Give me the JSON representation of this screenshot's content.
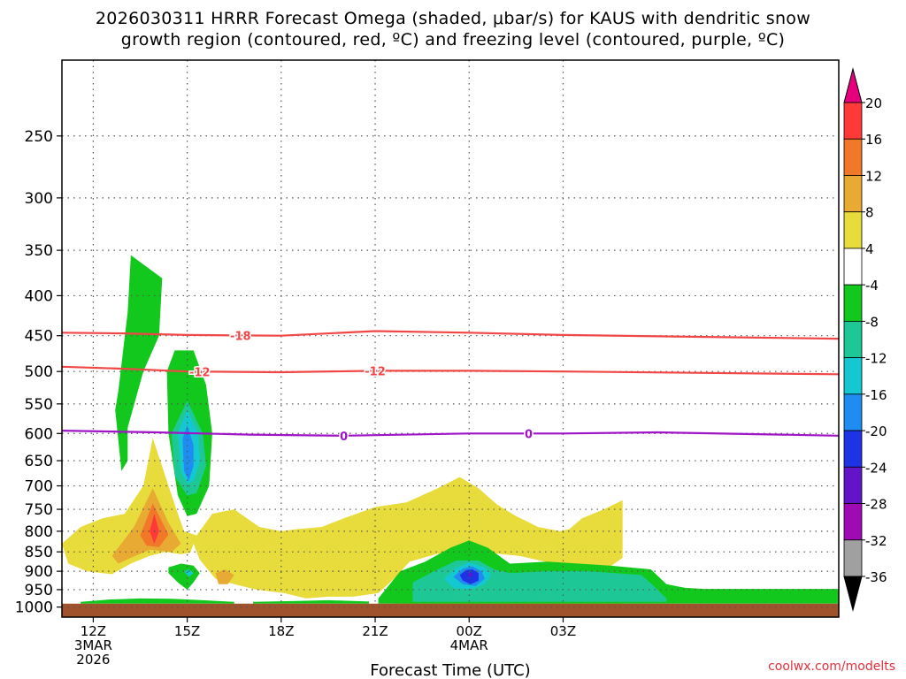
{
  "header": {
    "title_line1": "2026030311 HRRR Forecast Omega (shaded, μbar/s) for KAUS with dendritic snow",
    "title_line2": "growth region (contoured, red, ºC) and freezing level (contoured, purple, ºC)"
  },
  "credit": "coolwx.com/modelts",
  "chart_data": {
    "type": "heatmap",
    "xlabel": "Forecast Time (UTC)",
    "x_hour_range": [
      11,
      35.8
    ],
    "xticks": [
      {
        "hour": 12,
        "lines": [
          "12Z",
          "3MAR",
          "2026"
        ]
      },
      {
        "hour": 15,
        "lines": [
          "15Z"
        ]
      },
      {
        "hour": 18,
        "lines": [
          "18Z"
        ]
      },
      {
        "hour": 21,
        "lines": [
          "21Z"
        ]
      },
      {
        "hour": 24,
        "lines": [
          "00Z",
          "4MAR"
        ]
      },
      {
        "hour": 27,
        "lines": [
          "03Z"
        ]
      }
    ],
    "ylabel": "",
    "y_pressure_range_hPa": [
      200,
      1030
    ],
    "y_scale": "log, pressure decreasing upward",
    "yticks": [
      250,
      300,
      350,
      400,
      450,
      500,
      550,
      600,
      650,
      700,
      750,
      800,
      850,
      900,
      950,
      1000
    ],
    "grid": true,
    "ground_below_hPa": 990,
    "ground_color": "#a0522d",
    "colorbar": {
      "placement": "right",
      "levels": [
        20,
        16,
        12,
        8,
        4,
        -4,
        -8,
        -12,
        -16,
        -20,
        -24,
        -28,
        -32,
        -36
      ],
      "colors": [
        "#e6007e",
        "#ff3838",
        "#f07828",
        "#e8aa32",
        "#e8dc3c",
        "#ffffff",
        "#12c81c",
        "#1ec896",
        "#14c8d2",
        "#1e8cf0",
        "#1e32e6",
        "#6414c8",
        "#a00ab4",
        "#a0a0a0",
        "#000000"
      ],
      "extend": "both"
    },
    "contours": [
      {
        "name": "dendritic snow growth region",
        "color": "#f04646",
        "value": -18,
        "label": "-18",
        "points": [
          [
            11,
            446
          ],
          [
            13,
            447
          ],
          [
            15,
            449
          ],
          [
            18,
            450
          ],
          [
            21,
            444
          ],
          [
            24,
            446
          ],
          [
            27,
            449
          ],
          [
            35.8,
            454
          ]
        ],
        "label_hour": 16.7
      },
      {
        "name": "dendritic snow growth region",
        "color": "#f04646",
        "value": -12,
        "label": "-12",
        "points": [
          [
            11,
            493
          ],
          [
            13,
            496
          ],
          [
            15,
            500
          ],
          [
            18,
            501
          ],
          [
            21,
            499
          ],
          [
            24,
            499
          ],
          [
            27,
            500
          ],
          [
            35.8,
            504
          ]
        ],
        "label_hour": 15.4
      },
      {
        "name": "dendritic snow growth region",
        "color": "#f04646",
        "value": -12,
        "label": "-12",
        "points": [],
        "label_hour": 21.0
      },
      {
        "name": "freezing level",
        "color": "#a014c8",
        "value": 0,
        "label": "0",
        "points": [
          [
            11,
            595
          ],
          [
            14,
            598
          ],
          [
            17,
            602
          ],
          [
            20,
            604
          ],
          [
            24,
            600
          ],
          [
            27,
            600
          ],
          [
            30,
            598
          ],
          [
            35.8,
            604
          ]
        ],
        "label_hour": 20.0
      },
      {
        "name": "freezing level",
        "color": "#a014c8",
        "value": 0,
        "label": "0",
        "points": [],
        "label_hour": 25.9
      }
    ],
    "shaded_regions": [
      {
        "color": "#e8dc3c",
        "points": [
          [
            11,
            830
          ],
          [
            11.6,
            790
          ],
          [
            12.3,
            770
          ],
          [
            13,
            760
          ],
          [
            13.6,
            700
          ],
          [
            13.9,
            608
          ],
          [
            14.3,
            680
          ],
          [
            14.7,
            760
          ],
          [
            14.9,
            800
          ],
          [
            15.3,
            810
          ],
          [
            15.8,
            760
          ],
          [
            16.5,
            750
          ],
          [
            17.3,
            790
          ],
          [
            18,
            800
          ],
          [
            18.5,
            795
          ],
          [
            19.3,
            790
          ],
          [
            20,
            770
          ],
          [
            21,
            745
          ],
          [
            22,
            735
          ],
          [
            23,
            705
          ],
          [
            23.7,
            682
          ],
          [
            24.3,
            705
          ],
          [
            24.9,
            740
          ],
          [
            25.5,
            765
          ],
          [
            26.2,
            790
          ],
          [
            26.9,
            800
          ],
          [
            27.2,
            795
          ],
          [
            27.6,
            770
          ],
          [
            28.3,
            750
          ],
          [
            28.9,
            730
          ],
          [
            28.9,
            865
          ],
          [
            28.3,
            900
          ],
          [
            27.4,
            880
          ],
          [
            26.7,
            880
          ],
          [
            25.6,
            860
          ],
          [
            24.3,
            850
          ],
          [
            23,
            855
          ],
          [
            22.1,
            875
          ],
          [
            21.6,
            920
          ],
          [
            21.1,
            960
          ],
          [
            20.3,
            970
          ],
          [
            19.5,
            970
          ],
          [
            18.8,
            975
          ],
          [
            18.1,
            960
          ],
          [
            17.2,
            950
          ],
          [
            16.5,
            935
          ],
          [
            15.9,
            920
          ],
          [
            15.4,
            870
          ],
          [
            15.2,
            830
          ],
          [
            15.1,
            852
          ],
          [
            14.8,
            856
          ],
          [
            14.3,
            850
          ],
          [
            13.8,
            860
          ],
          [
            13.2,
            880
          ],
          [
            12.6,
            908
          ],
          [
            11.8,
            900
          ],
          [
            11.2,
            880
          ]
        ]
      },
      {
        "color": "#e8dc3c",
        "points": [
          [
            21.6,
            985
          ],
          [
            22.5,
            979
          ],
          [
            23.5,
            976
          ],
          [
            24.5,
            978
          ],
          [
            25.5,
            980
          ],
          [
            26.5,
            983
          ],
          [
            27.5,
            986
          ],
          [
            28.5,
            988
          ],
          [
            28.9,
            989
          ],
          [
            28.9,
            1000
          ],
          [
            21.6,
            1000
          ]
        ]
      },
      {
        "color": "#e8aa32",
        "points": [
          [
            12.6,
            860
          ],
          [
            13.3,
            790
          ],
          [
            13.9,
            705
          ],
          [
            14.4,
            780
          ],
          [
            14.8,
            830
          ],
          [
            14.5,
            850
          ],
          [
            13.8,
            845
          ],
          [
            13.2,
            865
          ],
          [
            12.8,
            880
          ]
        ]
      },
      {
        "color": "#e8aa32",
        "points": [
          [
            15.9,
            905
          ],
          [
            16.2,
            895
          ],
          [
            16.5,
            910
          ],
          [
            16.3,
            935
          ],
          [
            16.0,
            935
          ]
        ]
      },
      {
        "color": "#f07828",
        "points": [
          [
            13.5,
            810
          ],
          [
            13.9,
            737
          ],
          [
            14.4,
            808
          ],
          [
            14.1,
            838
          ],
          [
            13.7,
            835
          ]
        ]
      },
      {
        "color": "#ff3838",
        "points": [
          [
            13.8,
            800
          ],
          [
            13.95,
            760
          ],
          [
            14.1,
            800
          ],
          [
            13.95,
            830
          ]
        ]
      },
      {
        "color": "#12c81c",
        "points": [
          [
            12.8,
            530
          ],
          [
            13.1,
            420
          ],
          [
            13.2,
            355
          ],
          [
            14.2,
            380
          ],
          [
            14.1,
            450
          ],
          [
            13.6,
            500
          ],
          [
            13.1,
            590
          ],
          [
            13.1,
            650
          ],
          [
            12.9,
            670
          ],
          [
            12.7,
            560
          ]
        ]
      },
      {
        "color": "#12c81c",
        "points": [
          [
            14.35,
            500
          ],
          [
            14.6,
            470
          ],
          [
            15.2,
            470
          ],
          [
            15.6,
            520
          ],
          [
            15.8,
            600
          ],
          [
            15.7,
            700
          ],
          [
            15.3,
            760
          ],
          [
            15,
            765
          ],
          [
            14.7,
            720
          ],
          [
            14.4,
            600
          ]
        ]
      },
      {
        "color": "#12c81c",
        "points": [
          [
            14.4,
            890
          ],
          [
            14.8,
            880
          ],
          [
            15.2,
            885
          ],
          [
            15.4,
            905
          ],
          [
            15.2,
            930
          ],
          [
            15.0,
            950
          ],
          [
            14.7,
            930
          ],
          [
            14.4,
            905
          ]
        ]
      },
      {
        "color": "#12c81c",
        "points": [
          [
            11.6,
            985
          ],
          [
            12.5,
            978
          ],
          [
            13.5,
            975
          ],
          [
            14.5,
            976
          ],
          [
            15.5,
            980
          ],
          [
            16.5,
            985
          ],
          [
            16.5,
            990
          ],
          [
            11.6,
            990
          ]
        ]
      },
      {
        "color": "#12c81c",
        "points": [
          [
            17.1,
            985
          ],
          [
            18.5,
            982
          ],
          [
            19.5,
            980
          ],
          [
            20.3,
            982
          ],
          [
            20.8,
            984
          ],
          [
            20.8,
            990
          ],
          [
            17.1,
            990
          ]
        ]
      },
      {
        "color": "#12c81c",
        "points": [
          [
            21.1,
            975
          ],
          [
            21.8,
            900
          ],
          [
            22.6,
            875
          ],
          [
            23.4,
            840
          ],
          [
            24.0,
            822
          ],
          [
            24.6,
            840
          ],
          [
            25.3,
            880
          ],
          [
            26.5,
            875
          ],
          [
            27.5,
            880
          ],
          [
            28.5,
            885
          ],
          [
            29.8,
            895
          ],
          [
            30.3,
            935
          ],
          [
            30.9,
            945
          ],
          [
            31.5,
            948
          ],
          [
            35.8,
            948
          ],
          [
            35.8,
            990
          ],
          [
            21.1,
            990
          ]
        ]
      },
      {
        "color": "#1ec896",
        "points": [
          [
            22.2,
            930
          ],
          [
            23,
            895
          ],
          [
            23.6,
            872
          ],
          [
            24.3,
            872
          ],
          [
            24.8,
            895
          ],
          [
            25.3,
            905
          ],
          [
            26.5,
            900
          ],
          [
            27.8,
            900
          ],
          [
            29.5,
            910
          ],
          [
            29.9,
            940
          ],
          [
            30.3,
            975
          ],
          [
            30.3,
            985
          ],
          [
            22.2,
            985
          ]
        ]
      },
      {
        "color": "#1ec896",
        "points": [
          [
            14.5,
            600
          ],
          [
            15,
            545
          ],
          [
            15.5,
            600
          ],
          [
            15.6,
            660
          ],
          [
            15.3,
            715
          ],
          [
            15,
            720
          ],
          [
            14.6,
            680
          ]
        ]
      },
      {
        "color": "#14c8d2",
        "points": [
          [
            14.7,
            600
          ],
          [
            15,
            560
          ],
          [
            15.35,
            600
          ],
          [
            15.4,
            650
          ],
          [
            15.2,
            690
          ],
          [
            15,
            695
          ],
          [
            14.8,
            670
          ]
        ]
      },
      {
        "color": "#14c8d2",
        "points": [
          [
            14.9,
            900
          ],
          [
            15.05,
            895
          ],
          [
            15.2,
            905
          ],
          [
            15.05,
            915
          ]
        ]
      },
      {
        "color": "#14c8d2",
        "points": [
          [
            23.2,
            920
          ],
          [
            23.6,
            890
          ],
          [
            24.0,
            877
          ],
          [
            24.5,
            890
          ],
          [
            24.7,
            910
          ],
          [
            24.5,
            935
          ],
          [
            24,
            950
          ],
          [
            23.5,
            945
          ]
        ]
      },
      {
        "color": "#1e8cf0",
        "points": [
          [
            14.85,
            610
          ],
          [
            15,
            585
          ],
          [
            15.2,
            620
          ],
          [
            15.2,
            660
          ],
          [
            15.05,
            690
          ],
          [
            14.9,
            670
          ]
        ]
      },
      {
        "color": "#1e8cf0",
        "points": [
          [
            23.5,
            915
          ],
          [
            23.8,
            893
          ],
          [
            24.1,
            887
          ],
          [
            24.4,
            900
          ],
          [
            24.5,
            920
          ],
          [
            24.2,
            940
          ],
          [
            23.8,
            935
          ]
        ]
      },
      {
        "color": "#1e32e6",
        "points": [
          [
            23.7,
            910
          ],
          [
            23.9,
            897
          ],
          [
            24.1,
            895
          ],
          [
            24.3,
            905
          ],
          [
            24.3,
            925
          ],
          [
            24.05,
            935
          ],
          [
            23.8,
            925
          ]
        ]
      },
      {
        "color": "#6414c8",
        "points": [
          [
            23.95,
            908
          ],
          [
            24.05,
            904
          ],
          [
            24.12,
            910
          ],
          [
            24.05,
            916
          ]
        ]
      }
    ]
  }
}
